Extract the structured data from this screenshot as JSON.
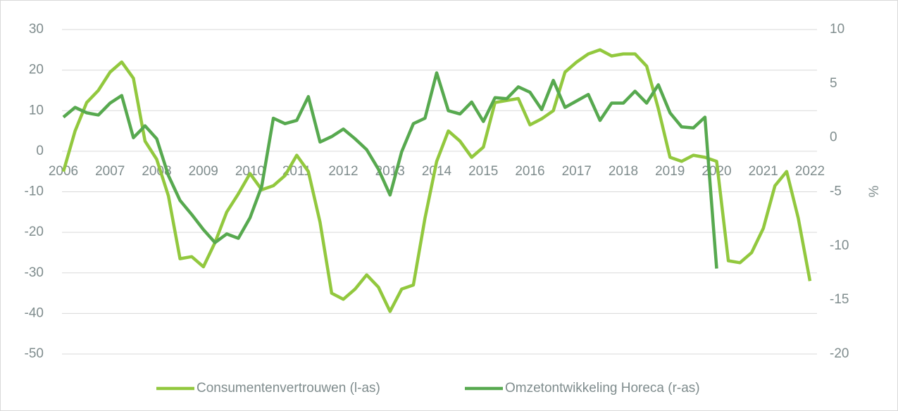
{
  "chart_data": {
    "type": "line",
    "y2label": "%",
    "x": [
      2006,
      2006.25,
      2006.5,
      2006.75,
      2007,
      2007.25,
      2007.5,
      2007.75,
      2008,
      2008.25,
      2008.5,
      2008.75,
      2009,
      2009.25,
      2009.5,
      2009.75,
      2010,
      2010.25,
      2010.5,
      2010.75,
      2011,
      2011.25,
      2011.5,
      2011.75,
      2012,
      2012.25,
      2012.5,
      2012.75,
      2013,
      2013.25,
      2013.5,
      2013.75,
      2014,
      2014.25,
      2014.5,
      2014.75,
      2015,
      2015.25,
      2015.5,
      2015.75,
      2016,
      2016.25,
      2016.5,
      2016.75,
      2017,
      2017.25,
      2017.5,
      2017.75,
      2018,
      2018.25,
      2018.5,
      2018.75,
      2019,
      2019.25,
      2019.5,
      2019.75,
      2020,
      2020.25,
      2020.5,
      2020.75,
      2021,
      2021.25,
      2021.5,
      2021.75,
      2022
    ],
    "series": [
      {
        "name": "Consumentenvertrouwen (l-as)",
        "color": "#92c83e",
        "values": [
          -5,
          5,
          12,
          15,
          19.5,
          22,
          18,
          2.5,
          -2,
          -11,
          -26.5,
          -26,
          -28.5,
          -22.5,
          -15,
          -10.5,
          -5.5,
          -9.5,
          -8.5,
          -6,
          -1,
          -5,
          -17.5,
          -35,
          -36.5,
          -34,
          -30.5,
          -33.5,
          -39.5,
          -34,
          -33,
          -16.5,
          -2.5,
          5,
          2.5,
          -1.5,
          1,
          12,
          12.5,
          13,
          6.5,
          8,
          10,
          19.5,
          22,
          24,
          25,
          23.5,
          24,
          24,
          21,
          10.5,
          -1.5,
          -2.5,
          -1,
          -1.5,
          -2.5,
          -27,
          -27.5,
          -25,
          -19,
          -8.5,
          -5,
          -16.5,
          -32
        ]
      },
      {
        "name": "Omzetontwikkeling Horeca (r-as)",
        "color": "#57a94f",
        "axis": "y2",
        "values": [
          1.9,
          2.8,
          2.3,
          2.1,
          3.2,
          3.9,
          0,
          1.1,
          -0.1,
          -3.5,
          -5.8,
          -7.1,
          -8.5,
          -9.7,
          -8.9,
          -9.3,
          -7.4,
          -4.5,
          1.8,
          1.3,
          1.6,
          3.8,
          -0.4,
          0.1,
          0.8,
          -0.1,
          -1.1,
          -2.9,
          -5.3,
          -1.3,
          1.3,
          1.8,
          6.0,
          2.5,
          2.2,
          3.3,
          1.5,
          3.7,
          3.6,
          4.7,
          4.2,
          2.6,
          5.3,
          2.8,
          3.4,
          4.0,
          1.6,
          3.2,
          3.2,
          4.3,
          3.2,
          4.9,
          2.3,
          1.0,
          0.9,
          1.9,
          -12.1,
          null,
          null,
          null,
          null,
          null,
          null,
          null,
          null
        ]
      }
    ],
    "xlim": [
      2006,
      2022
    ],
    "xticks": [
      2006,
      2007,
      2008,
      2009,
      2010,
      2011,
      2012,
      2013,
      2014,
      2015,
      2016,
      2017,
      2018,
      2019,
      2020,
      2021,
      2022
    ],
    "ylim": [
      -50,
      30
    ],
    "yticks": [
      -50,
      -40,
      -30,
      -20,
      -10,
      0,
      10,
      20,
      30
    ],
    "y2lim": [
      -20,
      10
    ],
    "y2ticks": [
      -20,
      -15,
      -10,
      -5,
      0,
      5,
      10
    ],
    "grid": true,
    "legend": "bottom"
  }
}
